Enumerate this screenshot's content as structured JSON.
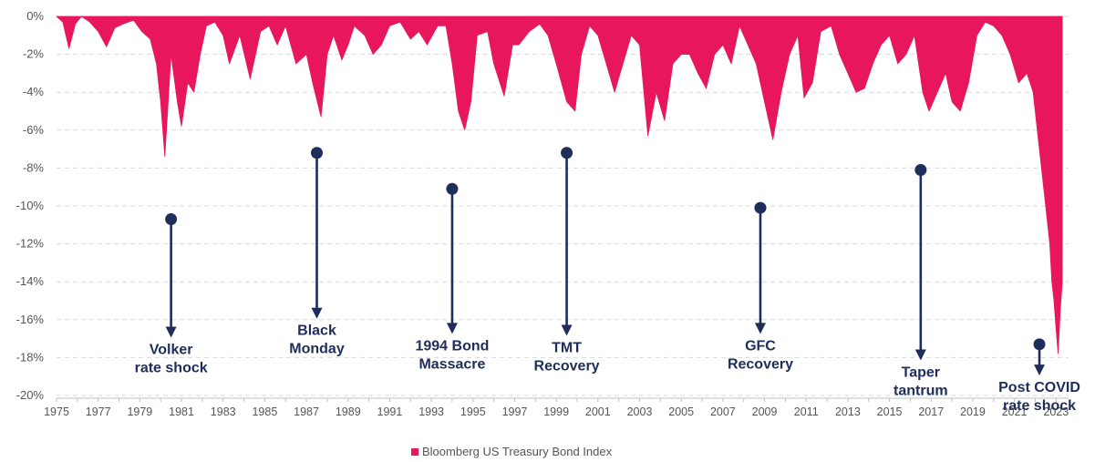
{
  "chart_data": {
    "type": "area",
    "ylim": [
      -20,
      0
    ],
    "xlim": [
      1975,
      2023.6
    ],
    "y_ticks": [
      0,
      -2,
      -4,
      -6,
      -8,
      -10,
      -12,
      -14,
      -16,
      -18,
      -20
    ],
    "y_tick_labels": [
      "0%",
      "-2%",
      "-4%",
      "-6%",
      "-8%",
      "-10%",
      "-12%",
      "-14%",
      "-16%",
      "-18%",
      "-20%"
    ],
    "x_ticks": [
      1975,
      1977,
      1979,
      1981,
      1983,
      1985,
      1987,
      1989,
      1991,
      1993,
      1995,
      1997,
      1999,
      2001,
      2003,
      2005,
      2007,
      2009,
      2011,
      2013,
      2015,
      2017,
      2019,
      2021,
      2023
    ],
    "x_tick_labels": [
      "1975",
      "1977",
      "1979",
      "1981",
      "1983",
      "1985",
      "1987",
      "1989",
      "1991",
      "1993",
      "1995",
      "1997",
      "1999",
      "2001",
      "2003",
      "2005",
      "2007",
      "2009",
      "2011",
      "2013",
      "2015",
      "2017",
      "2019",
      "2021",
      "2023"
    ],
    "grid": "horizontal dashed",
    "legend_position": "bottom-center",
    "series": [
      {
        "name": "Bloomberg US Treasury Bond Index",
        "color": "#e8175d",
        "points": [
          [
            1975.0,
            0
          ],
          [
            1975.3,
            -0.3
          ],
          [
            1975.6,
            -1.7
          ],
          [
            1975.9,
            -0.4
          ],
          [
            1976.2,
            0
          ],
          [
            1976.6,
            -0.3
          ],
          [
            1977.0,
            -0.8
          ],
          [
            1977.4,
            -1.6
          ],
          [
            1977.8,
            -0.6
          ],
          [
            1978.2,
            -0.4
          ],
          [
            1978.7,
            -0.2
          ],
          [
            1979.1,
            -0.8
          ],
          [
            1979.5,
            -1.2
          ],
          [
            1979.8,
            -2.5
          ],
          [
            1980.0,
            -4.5
          ],
          [
            1980.2,
            -7.4
          ],
          [
            1980.5,
            -2.0
          ],
          [
            1980.8,
            -4.5
          ],
          [
            1981.0,
            -5.8
          ],
          [
            1981.3,
            -3.5
          ],
          [
            1981.6,
            -4.0
          ],
          [
            1981.9,
            -2.0
          ],
          [
            1982.2,
            -0.5
          ],
          [
            1982.6,
            -0.3
          ],
          [
            1983.0,
            -1.0
          ],
          [
            1983.3,
            -2.5
          ],
          [
            1983.8,
            -1.0
          ],
          [
            1984.3,
            -3.3
          ],
          [
            1984.8,
            -0.8
          ],
          [
            1985.2,
            -0.5
          ],
          [
            1985.6,
            -1.5
          ],
          [
            1986.0,
            -0.5
          ],
          [
            1986.5,
            -2.5
          ],
          [
            1987.0,
            -2.0
          ],
          [
            1987.3,
            -3.5
          ],
          [
            1987.7,
            -5.3
          ],
          [
            1988.0,
            -2.0
          ],
          [
            1988.3,
            -1.0
          ],
          [
            1988.7,
            -2.3
          ],
          [
            1989.0,
            -1.5
          ],
          [
            1989.3,
            -0.5
          ],
          [
            1989.8,
            -1.0
          ],
          [
            1990.2,
            -2.0
          ],
          [
            1990.6,
            -1.5
          ],
          [
            1991.0,
            -0.5
          ],
          [
            1991.5,
            -0.3
          ],
          [
            1992.0,
            -1.2
          ],
          [
            1992.4,
            -0.8
          ],
          [
            1992.8,
            -1.5
          ],
          [
            1993.3,
            -0.5
          ],
          [
            1993.7,
            -0.5
          ],
          [
            1994.0,
            -2.5
          ],
          [
            1994.3,
            -5.0
          ],
          [
            1994.6,
            -6.0
          ],
          [
            1994.9,
            -4.5
          ],
          [
            1995.2,
            -1.0
          ],
          [
            1995.7,
            -0.8
          ],
          [
            1996.0,
            -2.5
          ],
          [
            1996.5,
            -4.2
          ],
          [
            1996.9,
            -1.5
          ],
          [
            1997.2,
            -1.5
          ],
          [
            1997.7,
            -0.8
          ],
          [
            1998.2,
            -0.4
          ],
          [
            1998.6,
            -1.0
          ],
          [
            1999.0,
            -2.5
          ],
          [
            1999.5,
            -4.5
          ],
          [
            1999.9,
            -5.0
          ],
          [
            2000.2,
            -2.0
          ],
          [
            2000.6,
            -0.5
          ],
          [
            2001.0,
            -1.0
          ],
          [
            2001.4,
            -2.5
          ],
          [
            2001.8,
            -4.0
          ],
          [
            2002.2,
            -2.5
          ],
          [
            2002.6,
            -1.0
          ],
          [
            2003.0,
            -1.5
          ],
          [
            2003.4,
            -6.3
          ],
          [
            2003.8,
            -4.0
          ],
          [
            2004.2,
            -5.5
          ],
          [
            2004.6,
            -2.5
          ],
          [
            2005.0,
            -2.0
          ],
          [
            2005.4,
            -2.0
          ],
          [
            2005.8,
            -3.0
          ],
          [
            2006.2,
            -3.8
          ],
          [
            2006.6,
            -2.0
          ],
          [
            2007.0,
            -1.5
          ],
          [
            2007.4,
            -2.5
          ],
          [
            2007.8,
            -0.5
          ],
          [
            2008.2,
            -1.5
          ],
          [
            2008.6,
            -2.5
          ],
          [
            2009.0,
            -4.5
          ],
          [
            2009.4,
            -6.5
          ],
          [
            2009.8,
            -4.0
          ],
          [
            2010.2,
            -2.0
          ],
          [
            2010.6,
            -1.0
          ],
          [
            2010.9,
            -4.3
          ],
          [
            2011.3,
            -3.5
          ],
          [
            2011.7,
            -0.8
          ],
          [
            2012.2,
            -0.5
          ],
          [
            2012.6,
            -2.0
          ],
          [
            2013.0,
            -3.0
          ],
          [
            2013.4,
            -4.0
          ],
          [
            2013.8,
            -3.8
          ],
          [
            2014.2,
            -2.5
          ],
          [
            2014.6,
            -1.5
          ],
          [
            2015.0,
            -1.0
          ],
          [
            2015.4,
            -2.5
          ],
          [
            2015.8,
            -2.0
          ],
          [
            2016.2,
            -1.0
          ],
          [
            2016.6,
            -4.0
          ],
          [
            2016.9,
            -5.0
          ],
          [
            2017.3,
            -4.0
          ],
          [
            2017.7,
            -3.0
          ],
          [
            2018.0,
            -4.5
          ],
          [
            2018.4,
            -5.0
          ],
          [
            2018.8,
            -3.5
          ],
          [
            2019.2,
            -1.0
          ],
          [
            2019.6,
            -0.3
          ],
          [
            2020.0,
            -0.5
          ],
          [
            2020.4,
            -1.0
          ],
          [
            2020.8,
            -2.0
          ],
          [
            2021.2,
            -3.5
          ],
          [
            2021.6,
            -3.0
          ],
          [
            2021.9,
            -4.0
          ],
          [
            2022.1,
            -6.0
          ],
          [
            2022.3,
            -8.0
          ],
          [
            2022.5,
            -10.0
          ],
          [
            2022.7,
            -12.0
          ],
          [
            2022.8,
            -14.0
          ],
          [
            2022.9,
            -15.0
          ],
          [
            2023.0,
            -16.5
          ],
          [
            2023.1,
            -17.8
          ],
          [
            2023.2,
            -15.5
          ],
          [
            2023.3,
            -14.0
          ]
        ]
      }
    ],
    "annotations": [
      {
        "label_lines": [
          "Volker",
          "rate shock"
        ],
        "x": 1980.5,
        "y_start": -10.7,
        "y_end": -16.9
      },
      {
        "label_lines": [
          "Black",
          "Monday"
        ],
        "x": 1987.5,
        "y_start": -7.2,
        "y_end": -15.9
      },
      {
        "label_lines": [
          "1994 Bond",
          "Massacre"
        ],
        "x": 1994.0,
        "y_start": -9.1,
        "y_end": -16.7
      },
      {
        "label_lines": [
          "TMT",
          "Recovery"
        ],
        "x": 1999.5,
        "y_start": -7.2,
        "y_end": -16.8
      },
      {
        "label_lines": [
          "GFC",
          "Recovery"
        ],
        "x": 2008.8,
        "y_start": -10.1,
        "y_end": -16.7
      },
      {
        "label_lines": [
          "Taper",
          "tantrum"
        ],
        "x": 2016.5,
        "y_start": -8.1,
        "y_end": -18.1
      },
      {
        "label_lines": [
          "Post COVID",
          "rate shock"
        ],
        "x": 2022.2,
        "y_start": -17.3,
        "y_end": -18.9
      }
    ],
    "legend": [
      {
        "label": "Bloomberg US Treasury Bond Index",
        "color": "#e8175d"
      }
    ]
  }
}
